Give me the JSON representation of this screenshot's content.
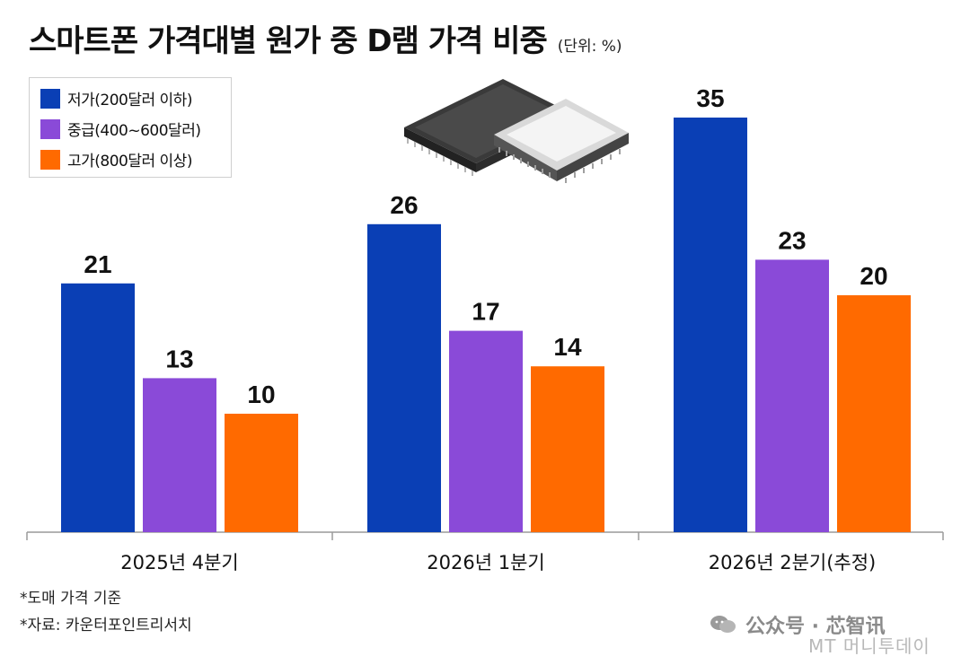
{
  "header": {
    "title": "스마트폰 가격대별 원가 중 D램 가격 비중",
    "unit": "(단위: %)"
  },
  "legend": {
    "items": [
      {
        "label": "저가(200달러 이하)",
        "color": "#0a3fb5"
      },
      {
        "label": "중급(400~600달러)",
        "color": "#8a4ad8"
      },
      {
        "label": "고가(800달러 이상)",
        "color": "#ff6a00"
      }
    ]
  },
  "notes": {
    "basis": "*도매 가격 기준",
    "source": "*자료: 카운터포인트리서치"
  },
  "watermark": {
    "wechat": "公众号 · 芯智讯",
    "publisher": "MT 머니투데이"
  },
  "chart_data": {
    "type": "bar",
    "title": "스마트폰 가격대별 원가 중 D램 가격 비중",
    "unit": "(단위: %)",
    "categories": [
      "2025년 4분기",
      "2026년 1분기",
      "2026년 2분기(추정)"
    ],
    "series": [
      {
        "name": "저가(200달러 이하)",
        "color": "#0a3fb5",
        "values": [
          21,
          26,
          35
        ]
      },
      {
        "name": "중급(400~600달러)",
        "color": "#8a4ad8",
        "values": [
          13,
          17,
          23
        ]
      },
      {
        "name": "고가(800달러 이상)",
        "color": "#ff6a00",
        "values": [
          10,
          14,
          20
        ]
      }
    ],
    "ylim": [
      0,
      35
    ],
    "grid": false,
    "legend_position": "top-left",
    "data_labels": true
  }
}
